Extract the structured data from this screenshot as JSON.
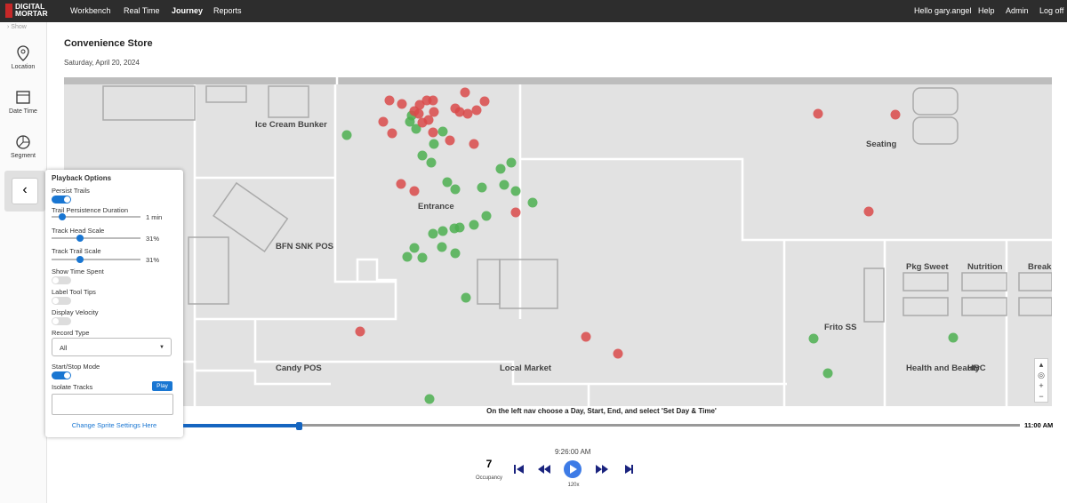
{
  "nav": {
    "logo": "DIGITAL MORTAR",
    "links": [
      "Workbench",
      "Real Time",
      "Journey",
      "Reports"
    ],
    "user": "Hello gary.angel",
    "right": [
      "Help",
      "Admin",
      "Log off"
    ]
  },
  "sidebar": {
    "show": "Show",
    "items": [
      "Location",
      "Date Time",
      "Segment"
    ]
  },
  "header": {
    "title": "Convenience Store",
    "date": "Saturday, April 20, 2024"
  },
  "playback_options": {
    "title": "Playback Options",
    "persist_trails": "Persist Trails",
    "trail_duration": {
      "label": "Trail Persistence Duration",
      "value": "1 min"
    },
    "head_scale": {
      "label": "Track Head Scale",
      "value": "31%"
    },
    "trail_scale": {
      "label": "Track Trail Scale",
      "value": "31%"
    },
    "show_time_spent": "Show Time Spent",
    "label_tool_tips": "Label Tool Tips",
    "display_velocity": "Display Velocity",
    "record_type": {
      "label": "Record Type",
      "value": "All"
    },
    "start_stop_mode": "Start/Stop Mode",
    "isolate_tracks": "Isolate Tracks",
    "play": "Play",
    "sprite_link": "Change Sprite Settings Here"
  },
  "map": {
    "labels": [
      "Ice Cream Bunker",
      "Seating",
      "Entrance",
      "BFN SNK POS",
      "Pkg Sweet",
      "Nutrition",
      "Break",
      "Frito SS",
      "Candy POS",
      "Local Market",
      "Health and Beauty",
      "HBC"
    ]
  },
  "timeline": {
    "instruction": "On the left nav choose a Day, Start, End, and select 'Set Day & Time'",
    "end": "11:00 AM"
  },
  "controls": {
    "time": "9:26:00 AM",
    "occupancy_value": "7",
    "occupancy_label": "Occupancy",
    "speed": "120x"
  }
}
